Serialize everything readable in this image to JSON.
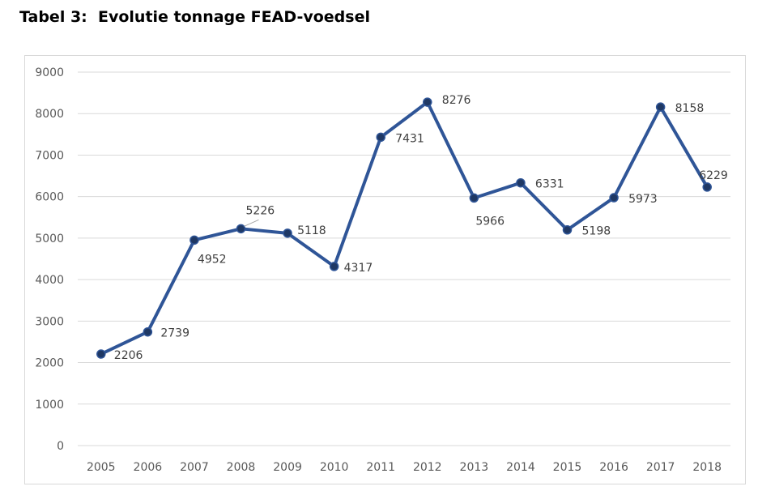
{
  "page": {
    "title": "Tabel 3:  Evolutie tonnage FEAD-voedsel"
  },
  "chart_data": {
    "type": "line",
    "title": "",
    "xlabel": "",
    "ylabel": "",
    "categories": [
      "2005",
      "2006",
      "2007",
      "2008",
      "2009",
      "2010",
      "2011",
      "2012",
      "2013",
      "2014",
      "2015",
      "2016",
      "2017",
      "2018"
    ],
    "series": [
      {
        "name": "",
        "values": [
          2206,
          2739,
          4952,
          5226,
          5118,
          4317,
          7431,
          8276,
          5966,
          6331,
          5198,
          5973,
          8158,
          6229
        ]
      }
    ],
    "ylim": [
      0,
      9000
    ],
    "yticks": [
      0,
      1000,
      2000,
      3000,
      4000,
      5000,
      6000,
      7000,
      8000,
      9000
    ],
    "grid": true,
    "legend": "none",
    "colors": {
      "line": "#2f5597",
      "marker": "#1f3864",
      "grid": "#d9d9d9"
    }
  }
}
